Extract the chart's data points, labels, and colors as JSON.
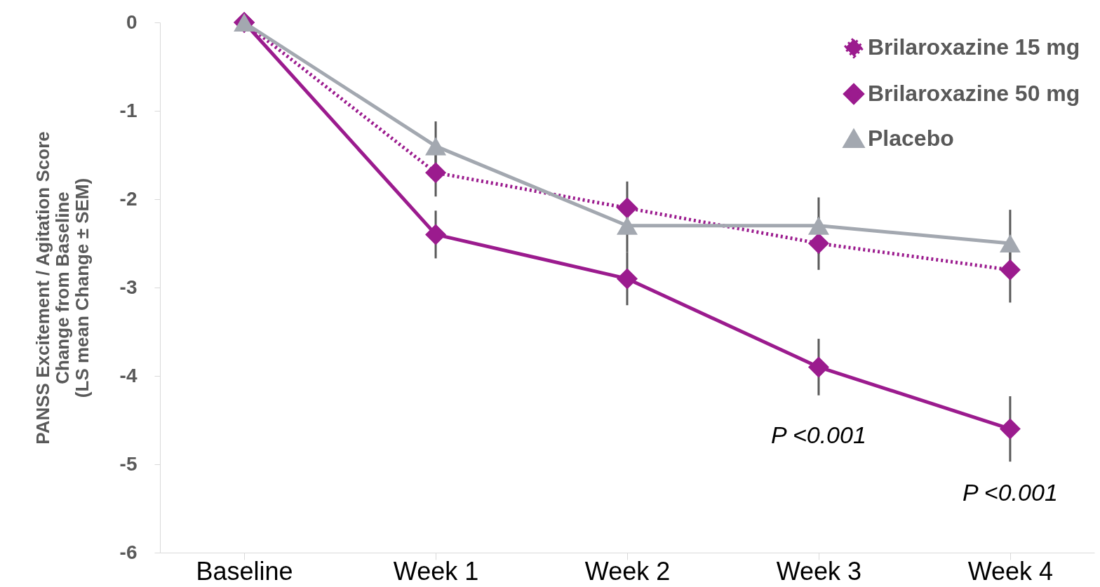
{
  "chart_data": {
    "type": "line",
    "ylabel": "PANSS Excitement / Agitation Score\nChange from Baseline\n(LS mean Change ± SEM)",
    "categories": [
      "Baseline",
      "Week 1",
      "Week 2",
      "Week 3",
      "Week 4"
    ],
    "series": [
      {
        "name": "Brilaroxazine 15 mg",
        "color": "#9b1b8e",
        "values": [
          0,
          -1.7,
          -2.1,
          -2.5,
          -2.8
        ],
        "errors": [
          null,
          0.27,
          0.3,
          0.3,
          0.37
        ],
        "marker": "diamond",
        "line_style": "dotted"
      },
      {
        "name": "Brilaroxazine 50 mg",
        "color": "#9b1b8e",
        "values": [
          0,
          -2.4,
          -2.9,
          -3.9,
          -4.6
        ],
        "errors": [
          null,
          0.27,
          0.3,
          0.32,
          0.37
        ],
        "marker": "diamond",
        "line_style": "solid"
      },
      {
        "name": "Placebo",
        "color": "#a3a8b0",
        "values": [
          0,
          -1.4,
          -2.3,
          -2.3,
          -2.5
        ],
        "errors": [
          null,
          0.28,
          0.3,
          0.32,
          0.38
        ],
        "marker": "triangle",
        "line_style": "solid"
      }
    ],
    "ylim": [
      -6,
      0
    ],
    "yticks": [
      0,
      -1,
      -2,
      -3,
      -4,
      -5,
      -6
    ],
    "legend": "top right",
    "grid": false,
    "annotations": [
      "P <0.001",
      "P <0.001"
    ]
  }
}
